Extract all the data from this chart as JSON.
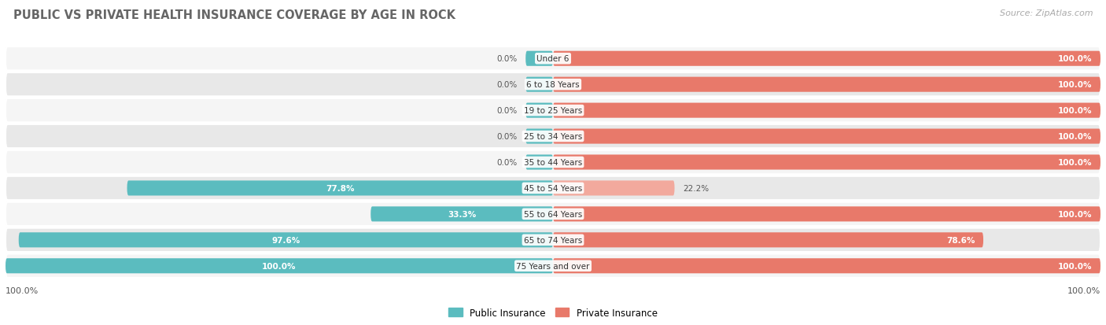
{
  "title": "PUBLIC VS PRIVATE HEALTH INSURANCE COVERAGE BY AGE IN ROCK",
  "source": "Source: ZipAtlas.com",
  "categories": [
    "Under 6",
    "6 to 18 Years",
    "19 to 25 Years",
    "25 to 34 Years",
    "35 to 44 Years",
    "45 to 54 Years",
    "55 to 64 Years",
    "65 to 74 Years",
    "75 Years and over"
  ],
  "public_values": [
    0.0,
    0.0,
    0.0,
    0.0,
    0.0,
    77.8,
    33.3,
    97.6,
    100.0
  ],
  "private_values": [
    100.0,
    100.0,
    100.0,
    100.0,
    100.0,
    22.2,
    100.0,
    78.6,
    100.0
  ],
  "public_color": "#5bbcbf",
  "private_color": "#e8796a",
  "private_light_color": "#f2a99d",
  "row_bg_light": "#f5f5f5",
  "row_bg_dark": "#e8e8e8",
  "label_white": "#ffffff",
  "label_dark": "#555555",
  "title_color": "#666666",
  "source_color": "#aaaaaa",
  "zero_stub": 5.0,
  "legend_public": "Public Insurance",
  "legend_private": "Private Insurance"
}
